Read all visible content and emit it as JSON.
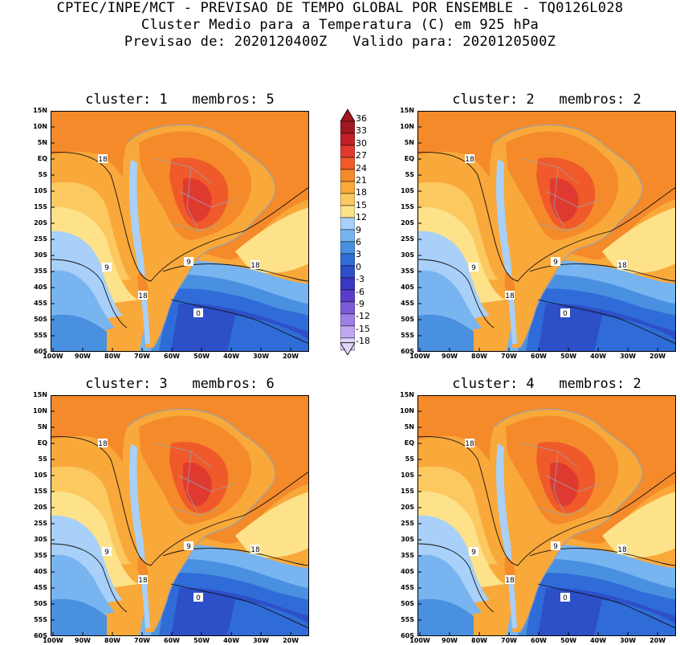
{
  "header": {
    "line1": "CPTEC/INPE/MCT - PREVISAO DE TEMPO GLOBAL POR ENSEMBLE - TQ0126L028",
    "line2": "Cluster Medio para a Temperatura (C) em 925 hPa",
    "line3": "Previsao de: 2020120400Z   Valido para: 2020120500Z"
  },
  "panels": [
    {
      "title": "cluster: 1   membros: 5"
    },
    {
      "title": "cluster: 2   membros: 2"
    },
    {
      "title": "cluster: 3   membros: 6"
    },
    {
      "title": "cluster: 4   membros: 2"
    }
  ],
  "lat_ticks": [
    "15N",
    "10N",
    "5N",
    "EQ",
    "5S",
    "10S",
    "15S",
    "20S",
    "25S",
    "30S",
    "35S",
    "40S",
    "45S",
    "50S",
    "55S",
    "60S"
  ],
  "lon_ticks": [
    "100W",
    "90W",
    "80W",
    "70W",
    "60W",
    "50W",
    "40W",
    "30W",
    "20W"
  ],
  "contour_labels": [
    "18",
    "9",
    "0"
  ],
  "colorbar": {
    "levels": [
      "36",
      "33",
      "30",
      "27",
      "24",
      "21",
      "18",
      "15",
      "12",
      "9",
      "6",
      "3",
      "0",
      "-3",
      "-6",
      "-9",
      "-12",
      "-15",
      "-18"
    ],
    "colors": [
      "#a01820",
      "#c02028",
      "#e03a30",
      "#f05a2a",
      "#f58a2a",
      "#f9a83a",
      "#fcc860",
      "#fde28a",
      "#a8d0f8",
      "#78b4f0",
      "#4a90e0",
      "#2f6cd8",
      "#2d4fc8",
      "#3a38c0",
      "#5b3cc8",
      "#7c5ad8",
      "#9c80e4",
      "#c0a8f0",
      "#e0d4f8"
    ]
  }
}
